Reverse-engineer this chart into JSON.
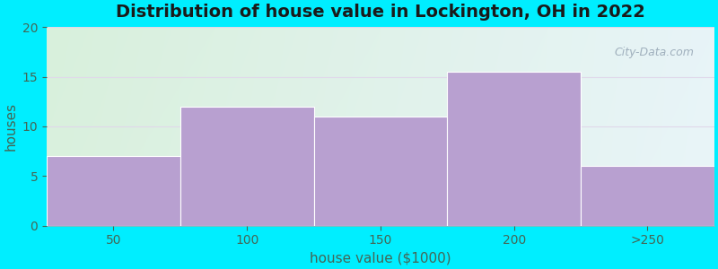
{
  "categories": [
    "50",
    "100",
    "150",
    "200",
    ">250"
  ],
  "values": [
    7,
    12,
    11,
    15.5,
    6
  ],
  "bar_color": "#b8a0d0",
  "bar_edgecolor": "#ffffff",
  "title": "Distribution of house value in Lockington, OH in 2022",
  "xlabel": "house value ($1000)",
  "ylabel": "houses",
  "ylim": [
    0,
    20
  ],
  "yticks": [
    0,
    5,
    10,
    15,
    20
  ],
  "bg_outer": "#00eeff",
  "bg_left_color": "#d8f0dc",
  "bg_right_color": "#e8f4f8",
  "bg_top_color": "#dff0e4",
  "bg_bottom_color": "#f5faf6",
  "grid_color": "#e0d8ea",
  "title_fontsize": 14,
  "label_fontsize": 11,
  "tick_fontsize": 10,
  "tick_color": "#446655",
  "label_color": "#446655"
}
